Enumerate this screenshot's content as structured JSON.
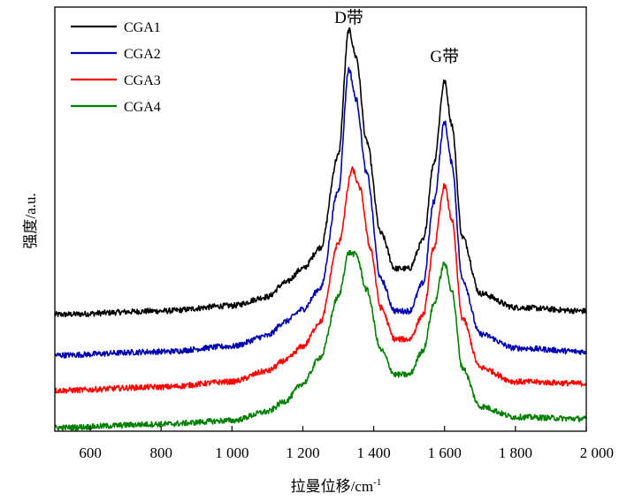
{
  "chart_data": {
    "type": "line",
    "title": "",
    "xlabel": "拉曼位移/cm",
    "xlabel_superscript": "-1",
    "ylabel": "强度/a.u.",
    "xlim": [
      500,
      2000
    ],
    "ylim": [
      0,
      12
    ],
    "x_ticks": [
      600,
      800,
      1000,
      1200,
      1400,
      1600,
      1800,
      2000
    ],
    "x_tick_labels": [
      "600",
      "800",
      "1 000",
      "1 200",
      "1 400",
      "1 600",
      "1 800",
      "2 000"
    ],
    "legend_position": "top-left",
    "grid": false,
    "annotations": [
      {
        "text": "D带",
        "x": 1330,
        "y": 11.55
      },
      {
        "text": "G带",
        "x": 1600,
        "y": 10.45
      }
    ],
    "series": [
      {
        "name": "CGA1",
        "color": "#000000",
        "x": [
          500,
          800,
          1000,
          1100,
          1150,
          1200,
          1250,
          1300,
          1330,
          1350,
          1380,
          1420,
          1460,
          1500,
          1540,
          1570,
          1600,
          1620,
          1650,
          1700,
          1800,
          2000
        ],
        "y": [
          3.3,
          3.4,
          3.55,
          3.8,
          4.2,
          4.6,
          5.2,
          7.8,
          11.35,
          10.6,
          8.2,
          5.6,
          4.6,
          4.6,
          5.4,
          7.6,
          9.9,
          8.7,
          5.5,
          3.9,
          3.5,
          3.4
        ]
      },
      {
        "name": "CGA2",
        "color": "#0000b0",
        "x": [
          500,
          800,
          1000,
          1100,
          1150,
          1200,
          1250,
          1300,
          1330,
          1350,
          1380,
          1420,
          1460,
          1500,
          1540,
          1570,
          1600,
          1620,
          1650,
          1700,
          1800,
          2000
        ],
        "y": [
          2.15,
          2.25,
          2.4,
          2.7,
          3.1,
          3.45,
          4.05,
          6.8,
          10.25,
          9.4,
          7.3,
          4.3,
          3.4,
          3.4,
          4.2,
          6.5,
          8.75,
          7.6,
          4.3,
          2.75,
          2.35,
          2.25
        ]
      },
      {
        "name": "CGA3",
        "color": "#ff0000",
        "x": [
          500,
          800,
          1000,
          1100,
          1150,
          1200,
          1250,
          1300,
          1340,
          1360,
          1390,
          1420,
          1460,
          1500,
          1540,
          1570,
          1600,
          1620,
          1650,
          1700,
          1800,
          2000
        ],
        "y": [
          1.15,
          1.25,
          1.4,
          1.7,
          2.0,
          2.4,
          3.1,
          5.3,
          7.4,
          6.9,
          5.2,
          3.5,
          2.6,
          2.6,
          3.3,
          5.2,
          6.95,
          6.0,
          3.2,
          1.8,
          1.4,
          1.35
        ]
      },
      {
        "name": "CGA4",
        "color": "#008000",
        "x": [
          500,
          800,
          1000,
          1100,
          1150,
          1200,
          1250,
          1300,
          1330,
          1350,
          1380,
          1420,
          1460,
          1500,
          1540,
          1570,
          1600,
          1620,
          1650,
          1700,
          1800,
          2000
        ],
        "y": [
          0.1,
          0.2,
          0.3,
          0.55,
          0.85,
          1.35,
          2.1,
          3.8,
          5.05,
          5.0,
          4.0,
          2.3,
          1.6,
          1.6,
          2.3,
          3.6,
          4.75,
          4.0,
          1.8,
          0.7,
          0.4,
          0.35
        ]
      }
    ]
  }
}
